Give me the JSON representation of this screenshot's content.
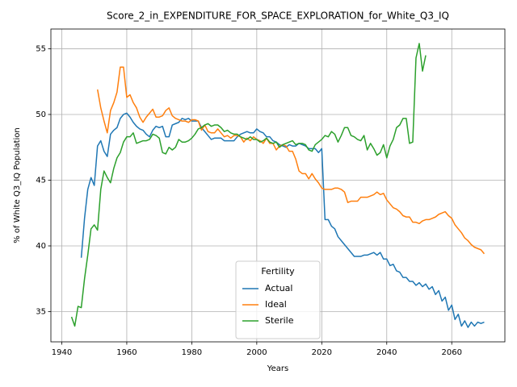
{
  "chart_data": {
    "type": "line",
    "title": "Score_2_in_EXPENDITURE_FOR_SPACE_EXPLORATION_for_White_Q3_IQ",
    "xlabel": "Years",
    "ylabel": "% of White Q3_IQ Population",
    "legend_title": "Fertility",
    "legend": "lower center",
    "grid": true,
    "xlim": [
      1936.65,
      2076.35
    ],
    "xticks": [
      1940,
      1960,
      1980,
      2000,
      2020,
      2040,
      2060
    ],
    "ylim": [
      32.7,
      56.5
    ],
    "yticks": [
      35,
      40,
      45,
      50,
      55
    ],
    "x": [
      1943,
      1944,
      1945,
      1946,
      1947,
      1948,
      1949,
      1950,
      1951,
      1952,
      1953,
      1954,
      1955,
      1956,
      1957,
      1958,
      1959,
      1960,
      1961,
      1962,
      1963,
      1964,
      1965,
      1966,
      1967,
      1968,
      1969,
      1970,
      1971,
      1972,
      1973,
      1974,
      1975,
      1976,
      1977,
      1978,
      1979,
      1980,
      1981,
      1982,
      1983,
      1984,
      1985,
      1986,
      1987,
      1988,
      1989,
      1990,
      1991,
      1992,
      1993,
      1994,
      1995,
      1996,
      1997,
      1998,
      1999,
      2000,
      2001,
      2002,
      2003,
      2004,
      2005,
      2006,
      2007,
      2008,
      2009,
      2010,
      2011,
      2012,
      2013,
      2014,
      2015,
      2016,
      2017,
      2018,
      2019,
      2020,
      2021,
      2022,
      2023,
      2024,
      2025,
      2026,
      2027,
      2028,
      2029,
      2030,
      2031,
      2032,
      2033,
      2034,
      2035,
      2036,
      2037,
      2038,
      2039,
      2040,
      2041,
      2042,
      2043,
      2044,
      2045,
      2046,
      2047,
      2048,
      2049,
      2050,
      2051,
      2052,
      2053,
      2054,
      2055,
      2056,
      2057,
      2058,
      2059,
      2060,
      2061,
      2062,
      2063,
      2064,
      2065,
      2066,
      2067,
      2068,
      2069,
      2070
    ],
    "series": [
      {
        "name": "Actual",
        "color": "#1f77b4",
        "values": [
          null,
          null,
          null,
          39.1,
          42.1,
          44.3,
          45.2,
          44.6,
          47.6,
          48.0,
          47.2,
          46.8,
          48.5,
          48.8,
          49.0,
          49.7,
          50.0,
          50.1,
          49.8,
          49.4,
          49.1,
          48.9,
          48.8,
          48.5,
          48.3,
          48.8,
          49.1,
          49.0,
          49.1,
          48.3,
          48.3,
          49.2,
          49.3,
          49.4,
          49.7,
          49.6,
          49.7,
          49.5,
          49.5,
          49.5,
          49.0,
          48.7,
          48.4,
          48.1,
          48.2,
          48.2,
          48.2,
          48.0,
          48.0,
          48.0,
          48.0,
          48.3,
          48.5,
          48.6,
          48.7,
          48.6,
          48.6,
          48.9,
          48.7,
          48.6,
          48.3,
          48.3,
          48.0,
          47.9,
          47.7,
          47.6,
          47.5,
          47.7,
          47.6,
          47.6,
          47.8,
          47.7,
          47.6,
          47.4,
          47.4,
          47.4,
          47.1,
          47.4,
          42.0,
          42.0,
          41.5,
          41.3,
          40.7,
          40.4,
          40.1,
          39.8,
          39.5,
          39.2,
          39.2,
          39.2,
          39.3,
          39.3,
          39.4,
          39.5,
          39.3,
          39.5,
          39.0,
          39.0,
          38.5,
          38.6,
          38.1,
          38.0,
          37.6,
          37.6,
          37.3,
          37.3,
          37.0,
          37.2,
          36.9,
          37.1,
          36.7,
          36.9,
          36.3,
          36.6,
          35.8,
          36.1,
          35.1,
          35.5,
          34.4,
          34.8,
          33.9,
          34.3,
          33.8,
          34.2,
          33.9,
          34.2,
          34.1,
          34.2
        ]
      },
      {
        "name": "Ideal",
        "color": "#ff7f0e",
        "values": [
          null,
          null,
          null,
          null,
          null,
          null,
          null,
          null,
          51.9,
          50.5,
          49.5,
          48.6,
          50.3,
          50.9,
          51.7,
          53.6,
          53.6,
          51.3,
          51.5,
          50.9,
          50.5,
          49.8,
          49.4,
          49.8,
          50.1,
          50.4,
          49.8,
          49.8,
          49.9,
          50.3,
          50.5,
          49.9,
          49.7,
          49.6,
          49.5,
          49.5,
          49.4,
          49.6,
          49.6,
          49.5,
          48.8,
          49.2,
          48.7,
          48.6,
          48.6,
          48.9,
          48.6,
          48.3,
          48.4,
          48.2,
          48.4,
          48.4,
          48.3,
          47.9,
          48.2,
          48.0,
          48.3,
          48.1,
          48.0,
          47.8,
          48.2,
          47.8,
          47.8,
          47.3,
          47.6,
          47.7,
          47.6,
          47.2,
          47.2,
          46.6,
          45.7,
          45.5,
          45.5,
          45.1,
          45.5,
          45.1,
          44.8,
          44.4,
          44.3,
          44.3,
          44.3,
          44.4,
          44.4,
          44.3,
          44.1,
          43.3,
          43.4,
          43.4,
          43.4,
          43.7,
          43.7,
          43.7,
          43.8,
          43.9,
          44.1,
          43.9,
          44.0,
          43.5,
          43.2,
          42.9,
          42.8,
          42.6,
          42.3,
          42.2,
          42.2,
          41.8,
          41.8,
          41.7,
          41.9,
          42.0,
          42.0,
          42.1,
          42.2,
          42.4,
          42.5,
          42.6,
          42.3,
          42.1,
          41.6,
          41.3,
          41.0,
          40.6,
          40.4,
          40.1,
          39.9,
          39.8,
          39.7,
          39.4
        ]
      },
      {
        "name": "Sterile",
        "color": "#2ca02c",
        "values": [
          34.6,
          33.9,
          35.4,
          35.3,
          37.5,
          39.3,
          41.3,
          41.6,
          41.2,
          44.3,
          45.7,
          45.2,
          44.8,
          45.9,
          46.7,
          47.1,
          47.9,
          48.3,
          48.3,
          48.6,
          47.8,
          47.9,
          48.0,
          48.0,
          48.1,
          48.5,
          48.4,
          48.2,
          47.1,
          47.0,
          47.5,
          47.3,
          47.5,
          48.1,
          47.9,
          47.9,
          48.0,
          48.2,
          48.5,
          48.9,
          49.0,
          49.2,
          49.3,
          49.1,
          49.2,
          49.2,
          49.0,
          48.7,
          48.8,
          48.6,
          48.5,
          48.5,
          48.3,
          48.2,
          48.1,
          48.3,
          48.1,
          48.1,
          47.9,
          48.0,
          48.2,
          47.9,
          47.8,
          47.9,
          47.5,
          47.7,
          47.8,
          47.9,
          48.0,
          47.7,
          47.8,
          47.8,
          47.7,
          47.3,
          47.2,
          47.7,
          47.9,
          48.1,
          48.4,
          48.3,
          48.7,
          48.5,
          47.9,
          48.4,
          49.0,
          49.0,
          48.4,
          48.3,
          48.1,
          48.0,
          48.4,
          47.3,
          47.8,
          47.4,
          46.9,
          47.1,
          47.7,
          46.7,
          47.6,
          48.1,
          49.0,
          49.2,
          49.7,
          49.7,
          47.8,
          47.9,
          54.3,
          55.4,
          53.3,
          54.5,
          null,
          null,
          null,
          null,
          null,
          null,
          null,
          null,
          null,
          null,
          null,
          null,
          null,
          null,
          null,
          null,
          null,
          null
        ]
      }
    ]
  }
}
